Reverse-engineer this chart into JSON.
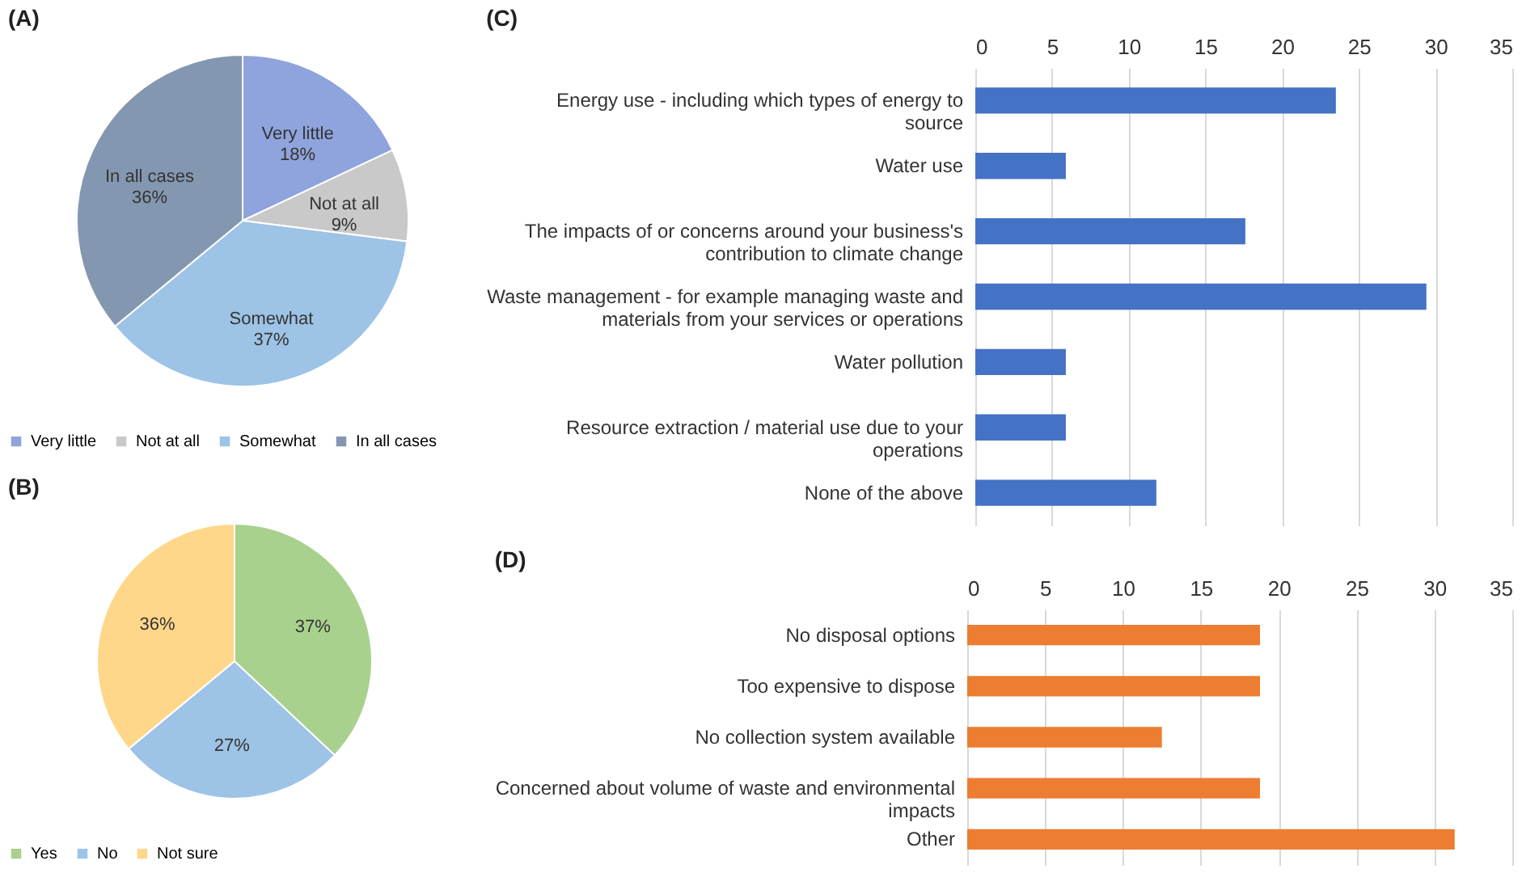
{
  "chart_data": [
    {
      "type": "pie",
      "title": "(A)",
      "categories": [
        "Very little",
        "Not at all",
        "Somewhat",
        "In all cases"
      ],
      "values": [
        18,
        9,
        37,
        36
      ],
      "colors": [
        "#8fa3dc",
        "#c9c9c9",
        "#9dc3e6",
        "#8497b0"
      ],
      "value_labels": [
        "Very little 18%",
        "Not at all 9%",
        "Somewhat 37%",
        "In all cases 36%"
      ],
      "legend": "bottom"
    },
    {
      "type": "pie",
      "title": "(B)",
      "categories": [
        "Yes",
        "No",
        "Not sure"
      ],
      "values": [
        37,
        27,
        36
      ],
      "colors": [
        "#a9d18e",
        "#9dc3e6",
        "#ffd78a"
      ],
      "value_labels": [
        "37%",
        "27%",
        "36%"
      ],
      "legend": "bottom"
    },
    {
      "type": "bar",
      "title": "(C)",
      "orientation": "horizontal",
      "categories": [
        "Energy use - including which types of energy to source",
        "Water use",
        "The impacts of or concerns around your business's contribution to climate change",
        "Waste management - for example managing waste and materials from your services or operations",
        "Water pollution",
        "Resource extraction / material use due to your operations",
        "None of the above"
      ],
      "values": [
        23.5,
        5.9,
        17.6,
        29.4,
        5.9,
        5.9,
        11.8
      ],
      "color": "#4472c4",
      "xlim": [
        0,
        35
      ],
      "xticks": [
        0,
        5,
        10,
        15,
        20,
        25,
        30,
        35
      ],
      "grid": "x"
    },
    {
      "type": "bar",
      "title": "(D)",
      "orientation": "horizontal",
      "categories": [
        "No disposal options",
        "Too expensive to dispose",
        "No collection system available",
        "Concerned about volume of waste and environmental impacts",
        "Other"
      ],
      "values": [
        18.8,
        18.8,
        12.5,
        18.8,
        31.3
      ],
      "color": "#ed7d31",
      "xlim": [
        0,
        35
      ],
      "xticks": [
        0,
        5,
        10,
        15,
        20,
        25,
        30,
        35
      ],
      "grid": "x"
    }
  ]
}
